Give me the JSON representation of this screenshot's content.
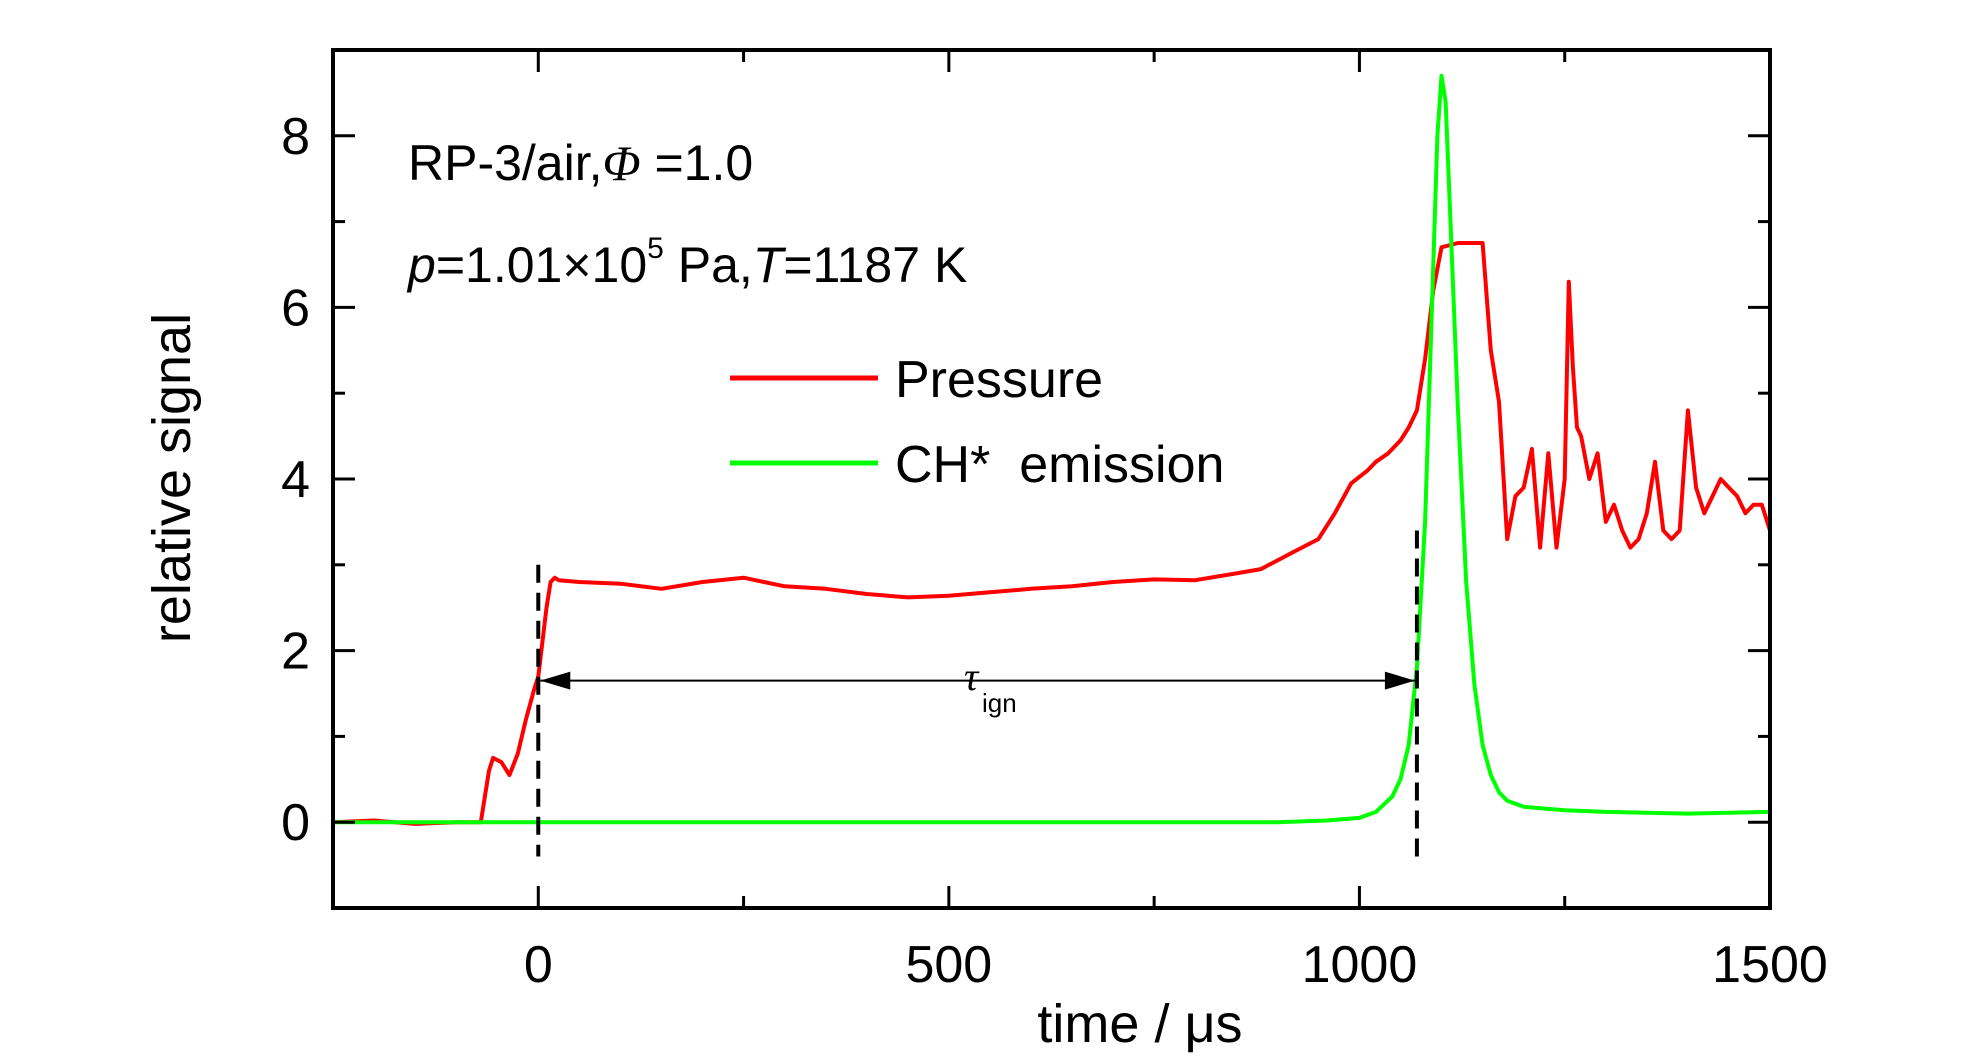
{
  "chart_data": {
    "type": "line",
    "xlabel": "time / μs",
    "ylabel": "relative signal",
    "xlim": [
      -250,
      1500
    ],
    "ylim": [
      -1,
      9
    ],
    "xticks": [
      0,
      500,
      1000,
      1500
    ],
    "yticks": [
      0,
      2,
      4,
      6,
      8
    ],
    "grid": false,
    "legend_position": "upper-center",
    "annotations": {
      "line1": {
        "a": "RP-3/air,",
        "phi": "Φ",
        "b": " =1.0"
      },
      "line2": {
        "p": "p",
        "a": "=1.01×10",
        "exp": "5",
        "b": " Pa,",
        "T": "T",
        "c": "=1187 K"
      },
      "tau": {
        "symbol": "τ",
        "sub": "ign"
      }
    },
    "markers": {
      "start_time": 0,
      "ignition_time": 1070
    },
    "series": [
      {
        "name": "Pressure",
        "color": "#ff0000",
        "x": [
          -250,
          -200,
          -150,
          -100,
          -70,
          -60,
          -55,
          -45,
          -35,
          -25,
          -15,
          -5,
          0,
          5,
          10,
          15,
          20,
          25,
          50,
          100,
          150,
          200,
          250,
          300,
          350,
          400,
          450,
          500,
          550,
          600,
          650,
          700,
          750,
          800,
          850,
          880,
          900,
          920,
          950,
          970,
          990,
          1010,
          1020,
          1035,
          1050,
          1060,
          1070,
          1080,
          1090,
          1100,
          1120,
          1140,
          1150,
          1160,
          1170,
          1180,
          1190,
          1200,
          1210,
          1220,
          1230,
          1240,
          1250,
          1255,
          1260,
          1265,
          1270,
          1280,
          1290,
          1300,
          1310,
          1320,
          1330,
          1340,
          1350,
          1360,
          1370,
          1380,
          1390,
          1400,
          1410,
          1420,
          1430,
          1440,
          1450,
          1460,
          1470,
          1480,
          1490,
          1500
        ],
        "y": [
          0.0,
          0.02,
          -0.02,
          0.0,
          0.0,
          0.6,
          0.75,
          0.7,
          0.55,
          0.8,
          1.2,
          1.55,
          1.7,
          2.1,
          2.5,
          2.8,
          2.85,
          2.82,
          2.8,
          2.78,
          2.72,
          2.8,
          2.85,
          2.75,
          2.72,
          2.66,
          2.62,
          2.64,
          2.68,
          2.72,
          2.75,
          2.8,
          2.83,
          2.82,
          2.9,
          2.95,
          3.05,
          3.15,
          3.3,
          3.6,
          3.95,
          4.1,
          4.2,
          4.3,
          4.45,
          4.6,
          4.8,
          5.4,
          6.2,
          6.7,
          6.75,
          6.75,
          6.75,
          5.5,
          4.9,
          3.3,
          3.8,
          3.9,
          4.35,
          3.2,
          4.3,
          3.2,
          4.0,
          6.3,
          5.3,
          4.6,
          4.5,
          4.0,
          4.3,
          3.5,
          3.7,
          3.4,
          3.2,
          3.3,
          3.6,
          4.2,
          3.4,
          3.3,
          3.4,
          4.8,
          3.9,
          3.6,
          3.8,
          4.0,
          3.9,
          3.8,
          3.6,
          3.7,
          3.7,
          3.4
        ]
      },
      {
        "name": "CH*  emission",
        "color": "#00ff00",
        "x": [
          -250,
          0,
          500,
          900,
          960,
          1000,
          1020,
          1040,
          1050,
          1060,
          1070,
          1080,
          1090,
          1095,
          1100,
          1105,
          1110,
          1120,
          1130,
          1140,
          1150,
          1160,
          1170,
          1180,
          1200,
          1250,
          1300,
          1400,
          1500
        ],
        "y": [
          0.0,
          0.0,
          0.0,
          0.0,
          0.02,
          0.05,
          0.12,
          0.3,
          0.5,
          0.9,
          1.8,
          3.5,
          6.5,
          8.0,
          8.7,
          8.4,
          7.2,
          4.8,
          2.8,
          1.6,
          0.9,
          0.55,
          0.35,
          0.25,
          0.18,
          0.14,
          0.12,
          0.1,
          0.12
        ]
      }
    ]
  }
}
